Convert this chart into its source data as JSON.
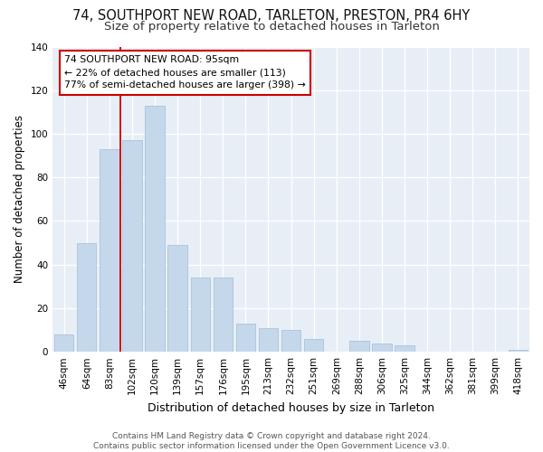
{
  "title1": "74, SOUTHPORT NEW ROAD, TARLETON, PRESTON, PR4 6HY",
  "title2": "Size of property relative to detached houses in Tarleton",
  "xlabel": "Distribution of detached houses by size in Tarleton",
  "ylabel": "Number of detached properties",
  "categories": [
    "46sqm",
    "64sqm",
    "83sqm",
    "102sqm",
    "120sqm",
    "139sqm",
    "157sqm",
    "176sqm",
    "195sqm",
    "213sqm",
    "232sqm",
    "251sqm",
    "269sqm",
    "288sqm",
    "306sqm",
    "325sqm",
    "344sqm",
    "362sqm",
    "381sqm",
    "399sqm",
    "418sqm"
  ],
  "values": [
    8,
    50,
    93,
    97,
    113,
    49,
    34,
    34,
    13,
    11,
    10,
    6,
    0,
    5,
    4,
    3,
    0,
    0,
    0,
    0,
    1
  ],
  "bar_color": "#c5d8eb",
  "bar_edgecolor": "#a8c4dc",
  "redline_x": 2.5,
  "annotation_text": "74 SOUTHPORT NEW ROAD: 95sqm\n← 22% of detached houses are smaller (113)\n77% of semi-detached houses are larger (398) →",
  "annotation_box_color": "#ffffff",
  "annotation_box_edgecolor": "#cc0000",
  "ylim": [
    0,
    140
  ],
  "yticks": [
    0,
    20,
    40,
    60,
    80,
    100,
    120,
    140
  ],
  "footer": "Contains HM Land Registry data © Crown copyright and database right 2024.\nContains public sector information licensed under the Open Government Licence v3.0.",
  "plot_background": "#e8eef5",
  "title1_fontsize": 10.5,
  "title2_fontsize": 9.5,
  "xlabel_fontsize": 9,
  "ylabel_fontsize": 8.5,
  "tick_fontsize": 7.5,
  "footer_fontsize": 6.5
}
